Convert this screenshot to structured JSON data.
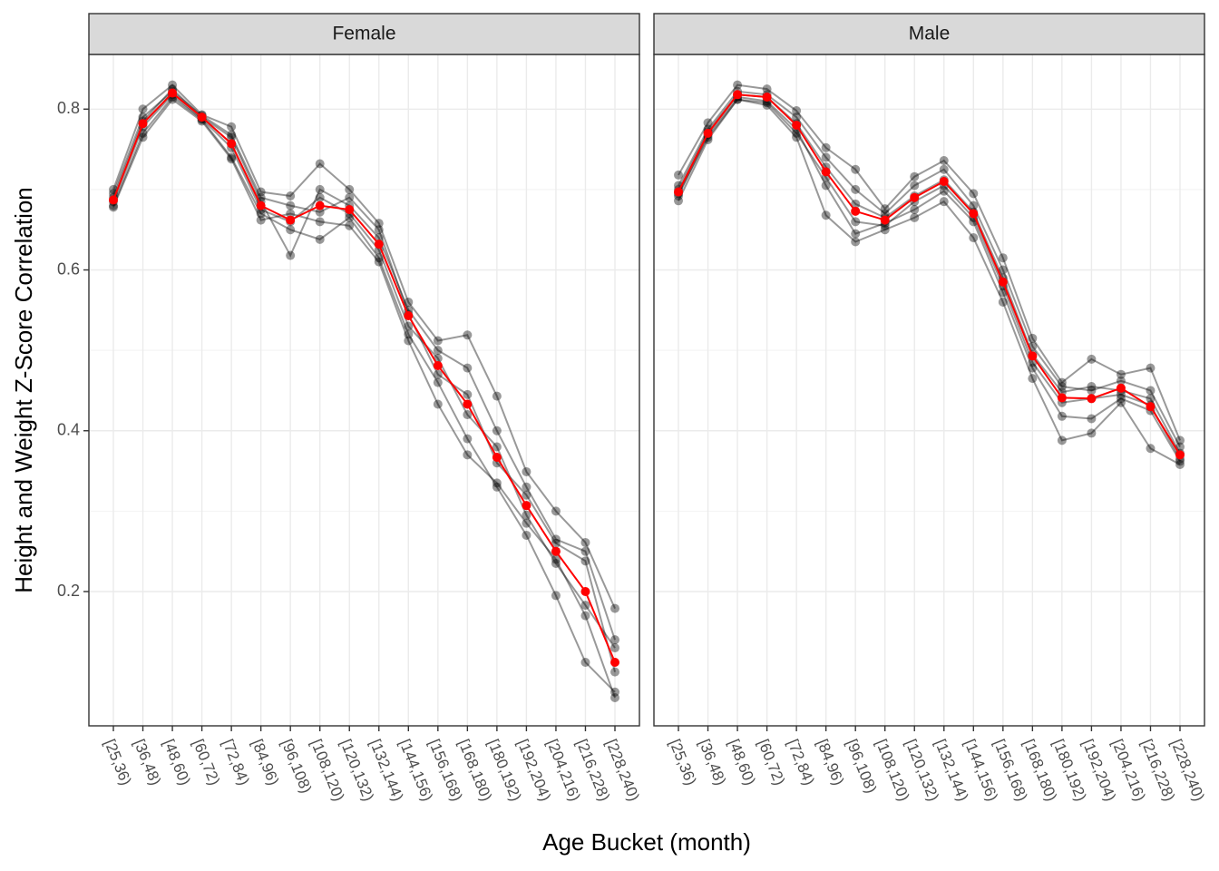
{
  "chart_data": {
    "type": "line",
    "xlabel": "Age Bucket (month)",
    "ylabel": "Height and Weight Z-Score Correlation",
    "categories": [
      "[25,36)",
      "[36,48)",
      "[48,60)",
      "[60,72)",
      "[72,84)",
      "[84,96)",
      "[96,108)",
      "[108,120)",
      "[120,132)",
      "[132,144)",
      "[144,156)",
      "[156,168)",
      "[168,180)",
      "[180,192)",
      "[192,204)",
      "[204,216)",
      "[216,228)",
      "[228,240)"
    ],
    "ylim": [
      0.033,
      0.868
    ],
    "yticks": [
      0.2,
      0.4,
      0.6,
      0.8
    ],
    "grid": true,
    "facets": [
      {
        "title": "Female",
        "series": [
          {
            "color": "#000000",
            "opacity": 0.4,
            "values": [
              0.7,
              0.8,
              0.83,
              0.793,
              0.778,
              0.697,
              0.692,
              0.732,
              0.7,
              0.658,
              0.56,
              0.512,
              0.519,
              0.443,
              0.349,
              0.3,
              0.261,
              0.179
            ]
          },
          {
            "color": "#000000",
            "opacity": 0.4,
            "values": [
              0.68,
              0.77,
              0.815,
              0.787,
              0.74,
              0.67,
              0.65,
              0.638,
              0.665,
              0.615,
              0.52,
              0.46,
              0.39,
              0.33,
              0.27,
              0.195,
              0.112,
              0.075
            ]
          },
          {
            "color": "#000000",
            "opacity": 0.4,
            "values": [
              0.69,
              0.785,
              0.825,
              0.79,
              0.765,
              0.685,
              0.618,
              0.7,
              0.68,
              0.64,
              0.55,
              0.5,
              0.478,
              0.4,
              0.33,
              0.265,
              0.25,
              0.14
            ]
          },
          {
            "color": "#000000",
            "opacity": 0.4,
            "values": [
              0.678,
              0.765,
              0.812,
              0.785,
              0.738,
              0.662,
              0.67,
              0.66,
              0.655,
              0.61,
              0.512,
              0.433,
              0.37,
              0.335,
              0.285,
              0.24,
              0.17,
              0.068
            ]
          },
          {
            "color": "#000000",
            "opacity": 0.4,
            "values": [
              0.695,
              0.79,
              0.822,
              0.792,
              0.768,
              0.69,
              0.68,
              0.672,
              0.69,
              0.65,
              0.545,
              0.47,
              0.445,
              0.36,
              0.32,
              0.26,
              0.238,
              0.1
            ]
          },
          {
            "color": "#000000",
            "opacity": 0.4,
            "values": [
              0.685,
              0.778,
              0.818,
              0.788,
              0.752,
              0.675,
              0.66,
              0.69,
              0.67,
              0.625,
              0.53,
              0.49,
              0.42,
              0.38,
              0.295,
              0.235,
              0.183,
              0.13
            ]
          },
          {
            "color": "#ff0000",
            "opacity": 1,
            "values": [
              0.687,
              0.782,
              0.82,
              0.79,
              0.757,
              0.68,
              0.662,
              0.68,
              0.675,
              0.632,
              0.543,
              0.481,
              0.433,
              0.367,
              0.307,
              0.25,
              0.2,
              0.112
            ]
          }
        ]
      },
      {
        "title": "Male",
        "series": [
          {
            "color": "#000000",
            "opacity": 0.4,
            "values": [
              0.718,
              0.783,
              0.83,
              0.825,
              0.798,
              0.752,
              0.725,
              0.676,
              0.716,
              0.736,
              0.695,
              0.615,
              0.515,
              0.46,
              0.489,
              0.47,
              0.478,
              0.388
            ]
          },
          {
            "color": "#000000",
            "opacity": 0.4,
            "values": [
              0.686,
              0.762,
              0.812,
              0.805,
              0.765,
              0.668,
              0.635,
              0.65,
              0.665,
              0.685,
              0.64,
              0.56,
              0.465,
              0.388,
              0.397,
              0.435,
              0.378,
              0.358
            ]
          },
          {
            "color": "#000000",
            "opacity": 0.4,
            "values": [
              0.705,
              0.775,
              0.822,
              0.818,
              0.79,
              0.74,
              0.7,
              0.67,
              0.705,
              0.725,
              0.68,
              0.6,
              0.505,
              0.455,
              0.45,
              0.462,
              0.45,
              0.38
            ]
          },
          {
            "color": "#000000",
            "opacity": 0.4,
            "values": [
              0.692,
              0.768,
              0.815,
              0.81,
              0.775,
              0.705,
              0.645,
              0.658,
              0.675,
              0.698,
              0.66,
              0.572,
              0.478,
              0.418,
              0.415,
              0.44,
              0.425,
              0.362
            ]
          },
          {
            "color": "#000000",
            "opacity": 0.4,
            "values": [
              0.7,
              0.772,
              0.818,
              0.815,
              0.782,
              0.728,
              0.682,
              0.665,
              0.692,
              0.712,
              0.672,
              0.59,
              0.495,
              0.448,
              0.455,
              0.45,
              0.44,
              0.372
            ]
          },
          {
            "color": "#000000",
            "opacity": 0.4,
            "values": [
              0.695,
              0.765,
              0.812,
              0.808,
              0.77,
              0.715,
              0.66,
              0.655,
              0.685,
              0.705,
              0.665,
              0.58,
              0.485,
              0.435,
              0.44,
              0.445,
              0.432,
              0.365
            ]
          },
          {
            "color": "#ff0000",
            "opacity": 1,
            "values": [
              0.697,
              0.77,
              0.818,
              0.815,
              0.78,
              0.722,
              0.673,
              0.662,
              0.69,
              0.71,
              0.67,
              0.585,
              0.493,
              0.441,
              0.44,
              0.453,
              0.43,
              0.37
            ]
          }
        ]
      }
    ]
  }
}
